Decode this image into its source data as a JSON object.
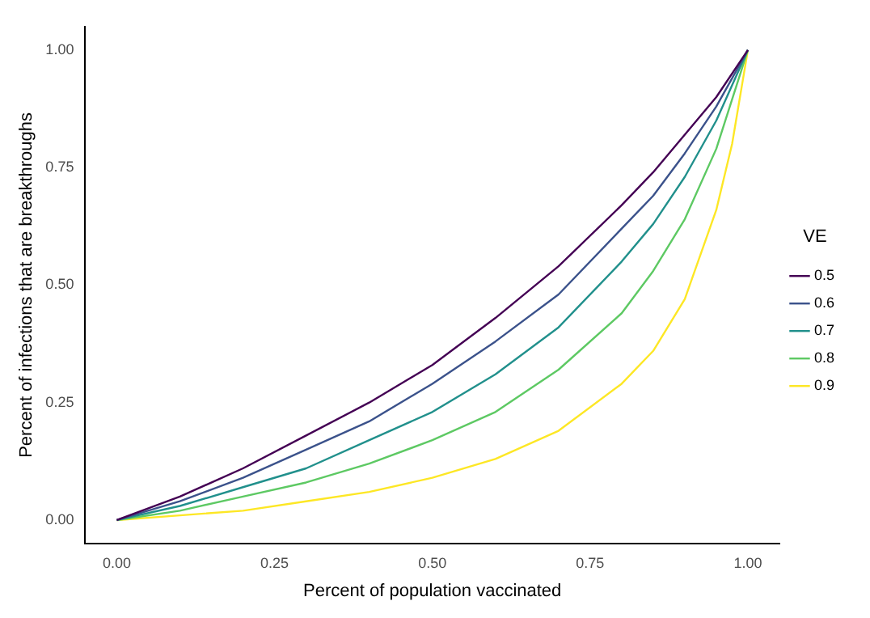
{
  "chart_data": {
    "type": "line",
    "xlabel": "Percent of population vaccinated",
    "ylabel": "Percent of infections that are breakthroughs",
    "legend_title": "VE",
    "legend": "right",
    "grid": false,
    "marker": "none",
    "line_style": "solid",
    "x": [
      0,
      0.1,
      0.2,
      0.3,
      0.4,
      0.5,
      0.6,
      0.7,
      0.8,
      0.85,
      0.9,
      0.95,
      1
    ],
    "xlim": [
      -0.05,
      1.05
    ],
    "ylim": [
      -0.05,
      1.05
    ],
    "xticks": [
      {
        "value": 0,
        "label": "0.00"
      },
      0.25,
      {
        "value": 0.5,
        "label": "0.50"
      },
      0.75,
      {
        "value": 1,
        "label": "1.00"
      }
    ],
    "yticks": [
      {
        "value": 0,
        "label": "0.00"
      },
      0.25,
      {
        "value": 0.5,
        "label": "0.50"
      },
      0.75,
      {
        "value": 1,
        "label": "1.00"
      }
    ],
    "series": [
      {
        "name": "0.5",
        "color": "#440154",
        "values": [
          0,
          0.05,
          0.11,
          0.18,
          0.25,
          0.33,
          0.43,
          0.54,
          0.67,
          0.74,
          0.82,
          0.9,
          1
        ]
      },
      {
        "name": "0.6",
        "color": "#3b528b",
        "values": [
          0,
          0.04,
          0.09,
          0.15,
          0.21,
          0.29,
          0.38,
          0.48,
          0.62,
          0.69,
          0.78,
          0.88,
          1
        ]
      },
      {
        "name": "0.7",
        "color": "#21908c",
        "values": [
          0,
          0.03,
          0.07,
          0.11,
          0.17,
          0.23,
          0.31,
          0.41,
          0.55,
          0.63,
          0.73,
          0.85,
          1
        ]
      },
      {
        "name": "0.8",
        "color": "#5dc963",
        "values": [
          0,
          0.02,
          0.05,
          0.08,
          0.12,
          0.17,
          0.23,
          0.32,
          0.44,
          0.53,
          0.64,
          0.79,
          1
        ]
      },
      {
        "name": "0.9",
        "color": "#fde725",
        "x": [
          0,
          0.1,
          0.2,
          0.3,
          0.4,
          0.5,
          0.6,
          0.7,
          0.8,
          0.85,
          0.9,
          0.95,
          0.975,
          1
        ],
        "values": [
          0,
          0.01,
          0.02,
          0.04,
          0.06,
          0.09,
          0.13,
          0.19,
          0.29,
          0.36,
          0.47,
          0.66,
          0.8,
          1
        ]
      }
    ]
  }
}
